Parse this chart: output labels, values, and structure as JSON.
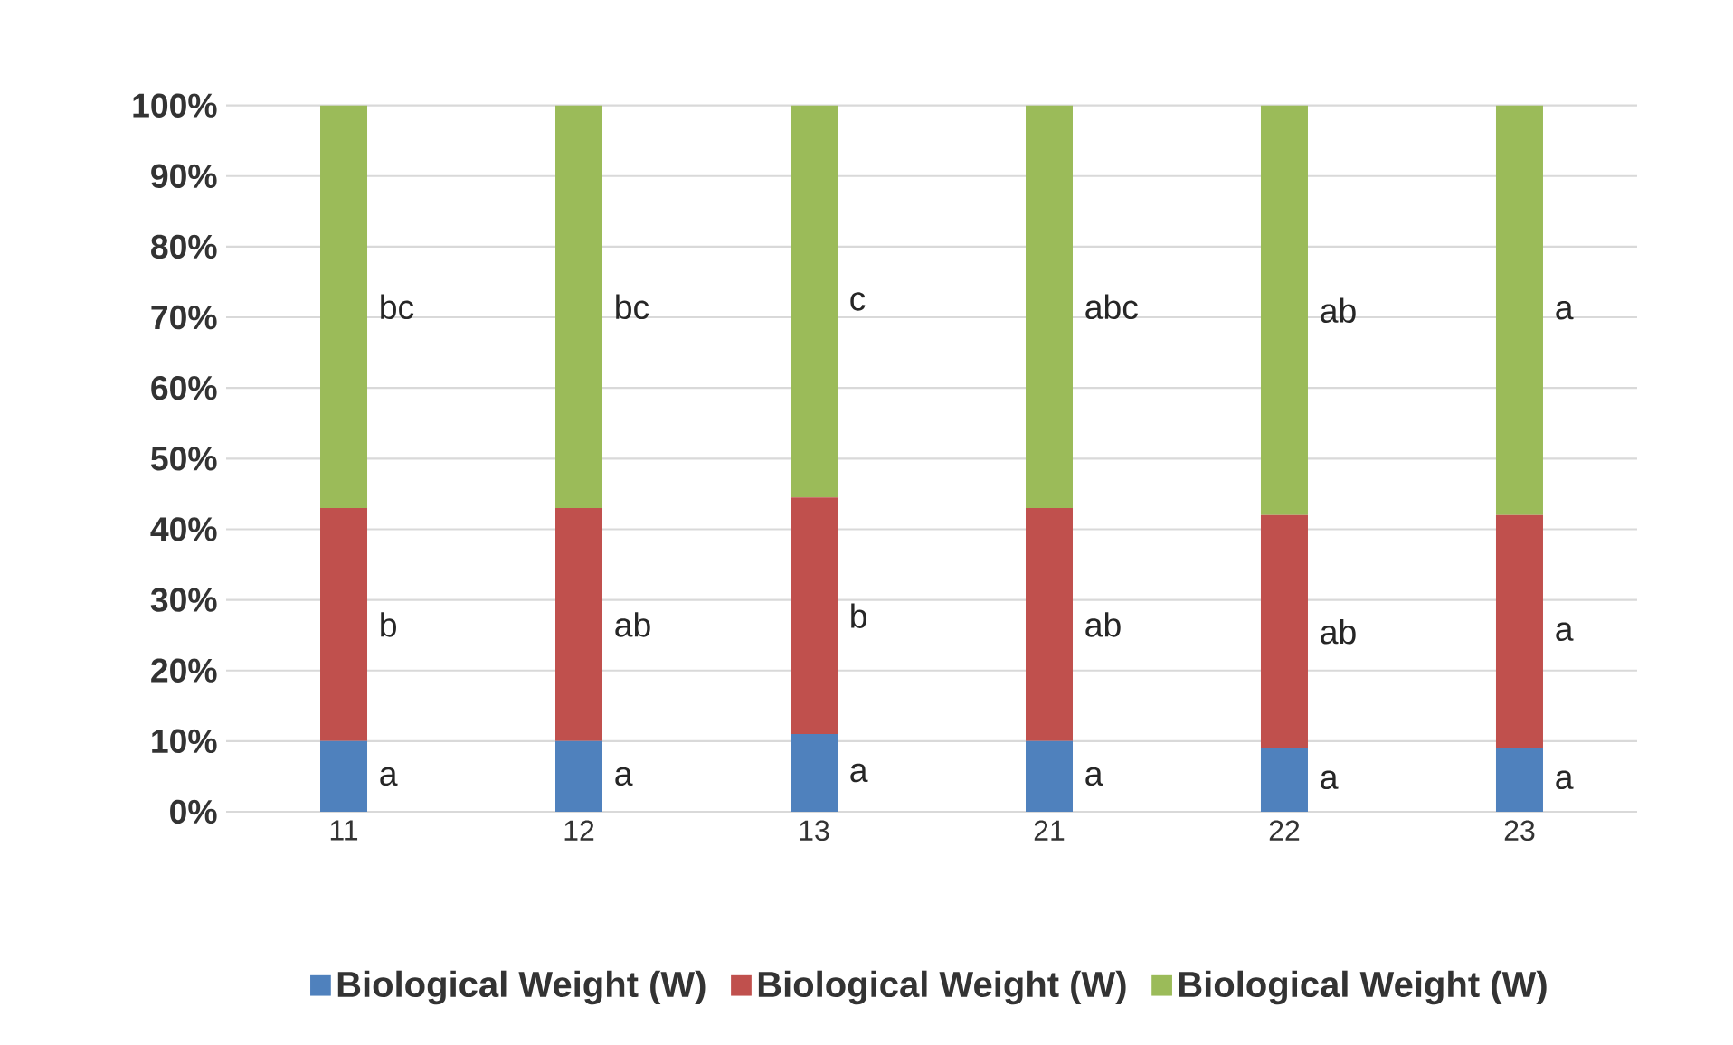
{
  "chart_data": {
    "type": "bar",
    "stacked": true,
    "categories": [
      "11",
      "12",
      "13",
      "21",
      "22",
      "23"
    ],
    "series": [
      {
        "name": "Biological Weight (W)",
        "color": "#4f81bd",
        "values": [
          10,
          10,
          11,
          10,
          9,
          9
        ]
      },
      {
        "name": "Biological Weight (W)",
        "color": "#c0504d",
        "values": [
          33,
          33,
          33.5,
          33,
          33,
          33
        ]
      },
      {
        "name": "Biological Weight (W)",
        "color": "#9bbb59",
        "values": [
          57,
          57,
          55.5,
          57,
          58,
          58
        ]
      }
    ],
    "ylim": [
      0,
      100
    ],
    "yticks": [
      {
        "value": 0,
        "label": "0%"
      },
      {
        "value": 10,
        "label": "10%"
      },
      {
        "value": 20,
        "label": "20%"
      },
      {
        "value": 30,
        "label": "30%"
      },
      {
        "value": 40,
        "label": "40%"
      },
      {
        "value": 50,
        "label": "50%"
      },
      {
        "value": 60,
        "label": "60%"
      },
      {
        "value": 70,
        "label": "70%"
      },
      {
        "value": 80,
        "label": "80%"
      },
      {
        "value": 90,
        "label": "90%"
      },
      {
        "value": 100,
        "label": "100%"
      }
    ],
    "grid": "y",
    "legend": "bottom",
    "annotations": [
      "a",
      "b",
      "bc",
      "a",
      "ab",
      "bc",
      "a",
      "b",
      "c",
      "a",
      "ab",
      "abc",
      "a",
      "ab",
      "ab",
      "a",
      "a",
      "a"
    ]
  }
}
